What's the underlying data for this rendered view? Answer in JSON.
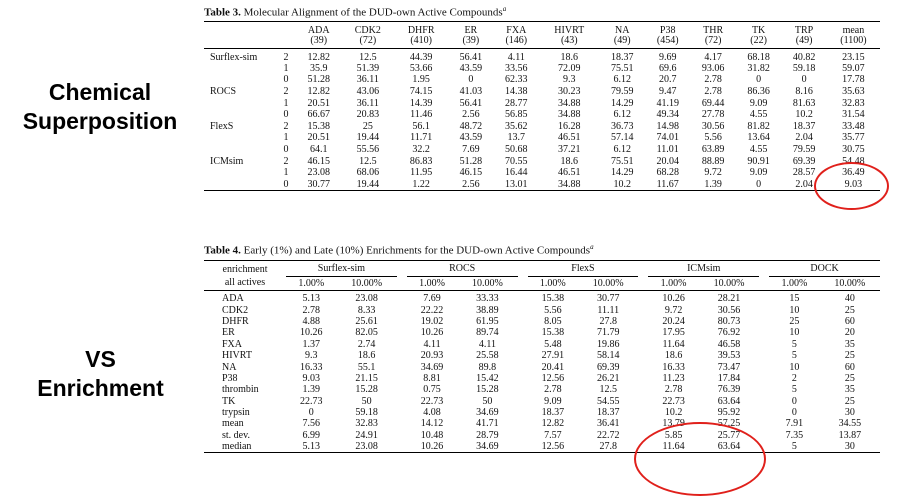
{
  "labels": {
    "top": [
      "Chemical",
      "Superposition"
    ],
    "bottom": [
      "VS",
      "Enrichment"
    ]
  },
  "table3": {
    "caption_bold": "Table 3.",
    "caption_text": "Molecular Alignment of the DUD-own Active Compounds",
    "caption_sup": "a",
    "columns": [
      {
        "name": "ADA",
        "count": "(39)"
      },
      {
        "name": "CDK2",
        "count": "(72)"
      },
      {
        "name": "DHFR",
        "count": "(410)"
      },
      {
        "name": "ER",
        "count": "(39)"
      },
      {
        "name": "FXA",
        "count": "(146)"
      },
      {
        "name": "HIVRT",
        "count": "(43)"
      },
      {
        "name": "NA",
        "count": "(49)"
      },
      {
        "name": "P38",
        "count": "(454)"
      },
      {
        "name": "THR",
        "count": "(72)"
      },
      {
        "name": "TK",
        "count": "(22)"
      },
      {
        "name": "TRP",
        "count": "(49)"
      },
      {
        "name": "mean",
        "count": "(1100)"
      }
    ],
    "rows": [
      {
        "method": "Surflex-sim",
        "level": "2",
        "values": [
          "12.82",
          "12.5",
          "44.39",
          "56.41",
          "4.11",
          "18.6",
          "18.37",
          "9.69",
          "4.17",
          "68.18",
          "40.82",
          "23.15"
        ]
      },
      {
        "method": "",
        "level": "1",
        "values": [
          "35.9",
          "51.39",
          "53.66",
          "43.59",
          "33.56",
          "72.09",
          "75.51",
          "69.6",
          "93.06",
          "31.82",
          "59.18",
          "59.07"
        ]
      },
      {
        "method": "",
        "level": "0",
        "values": [
          "51.28",
          "36.11",
          "1.95",
          "0",
          "62.33",
          "9.3",
          "6.12",
          "20.7",
          "2.78",
          "0",
          "0",
          "17.78"
        ]
      },
      {
        "method": "ROCS",
        "level": "2",
        "values": [
          "12.82",
          "43.06",
          "74.15",
          "41.03",
          "14.38",
          "30.23",
          "79.59",
          "9.47",
          "2.78",
          "86.36",
          "8.16",
          "35.63"
        ]
      },
      {
        "method": "",
        "level": "1",
        "values": [
          "20.51",
          "36.11",
          "14.39",
          "56.41",
          "28.77",
          "34.88",
          "14.29",
          "41.19",
          "69.44",
          "9.09",
          "81.63",
          "32.83"
        ]
      },
      {
        "method": "",
        "level": "0",
        "values": [
          "66.67",
          "20.83",
          "11.46",
          "2.56",
          "56.85",
          "34.88",
          "6.12",
          "49.34",
          "27.78",
          "4.55",
          "10.2",
          "31.54"
        ]
      },
      {
        "method": "FlexS",
        "level": "2",
        "values": [
          "15.38",
          "25",
          "56.1",
          "48.72",
          "35.62",
          "16.28",
          "36.73",
          "14.98",
          "30.56",
          "81.82",
          "18.37",
          "33.48"
        ]
      },
      {
        "method": "",
        "level": "1",
        "values": [
          "20.51",
          "19.44",
          "11.71",
          "43.59",
          "13.7",
          "46.51",
          "57.14",
          "74.01",
          "5.56",
          "13.64",
          "2.04",
          "35.77"
        ]
      },
      {
        "method": "",
        "level": "0",
        "values": [
          "64.1",
          "55.56",
          "32.2",
          "7.69",
          "50.68",
          "37.21",
          "6.12",
          "11.01",
          "63.89",
          "4.55",
          "79.59",
          "30.75"
        ]
      },
      {
        "method": "ICMsim",
        "level": "2",
        "values": [
          "46.15",
          "12.5",
          "86.83",
          "51.28",
          "70.55",
          "18.6",
          "75.51",
          "20.04",
          "88.89",
          "90.91",
          "69.39",
          "54.48"
        ]
      },
      {
        "method": "",
        "level": "1",
        "values": [
          "23.08",
          "68.06",
          "11.95",
          "46.15",
          "16.44",
          "46.51",
          "14.29",
          "68.28",
          "9.72",
          "9.09",
          "28.57",
          "36.49"
        ]
      },
      {
        "method": "",
        "level": "0",
        "values": [
          "30.77",
          "19.44",
          "1.22",
          "2.56",
          "13.01",
          "34.88",
          "10.2",
          "11.67",
          "1.39",
          "0",
          "2.04",
          "9.03"
        ]
      }
    ]
  },
  "table4": {
    "caption_bold": "Table 4.",
    "caption_text": "Early (1%) and Late (10%) Enrichments for the DUD-own Active Compounds",
    "caption_sup": "a",
    "first_col_line1": "enrichment",
    "first_col_line2": "all actives",
    "groups": [
      "Surflex-sim",
      "ROCS",
      "FlexS",
      "ICMsim",
      "DOCK"
    ],
    "subcols": [
      "1.00%",
      "10.00%"
    ],
    "rows": [
      {
        "target": "ADA",
        "values": [
          "5.13",
          "23.08",
          "7.69",
          "33.33",
          "15.38",
          "30.77",
          "10.26",
          "28.21",
          "15",
          "40"
        ]
      },
      {
        "target": "CDK2",
        "values": [
          "2.78",
          "8.33",
          "22.22",
          "38.89",
          "5.56",
          "11.11",
          "9.72",
          "30.56",
          "10",
          "25"
        ]
      },
      {
        "target": "DHFR",
        "values": [
          "4.88",
          "25.61",
          "19.02",
          "61.95",
          "8.05",
          "27.8",
          "20.24",
          "80.73",
          "25",
          "60"
        ]
      },
      {
        "target": "ER",
        "values": [
          "10.26",
          "82.05",
          "10.26",
          "89.74",
          "15.38",
          "71.79",
          "17.95",
          "76.92",
          "10",
          "20"
        ]
      },
      {
        "target": "FXA",
        "values": [
          "1.37",
          "2.74",
          "4.11",
          "4.11",
          "5.48",
          "19.86",
          "11.64",
          "46.58",
          "5",
          "35"
        ]
      },
      {
        "target": "HIVRT",
        "values": [
          "9.3",
          "18.6",
          "20.93",
          "25.58",
          "27.91",
          "58.14",
          "18.6",
          "39.53",
          "5",
          "25"
        ]
      },
      {
        "target": "NA",
        "values": [
          "16.33",
          "55.1",
          "34.69",
          "89.8",
          "20.41",
          "69.39",
          "16.33",
          "73.47",
          "10",
          "60"
        ]
      },
      {
        "target": "P38",
        "values": [
          "9.03",
          "21.15",
          "8.81",
          "15.42",
          "12.56",
          "26.21",
          "11.23",
          "17.84",
          "2",
          "25"
        ]
      },
      {
        "target": "thrombin",
        "values": [
          "1.39",
          "15.28",
          "0.75",
          "15.28",
          "2.78",
          "12.5",
          "2.78",
          "76.39",
          "5",
          "35"
        ]
      },
      {
        "target": "TK",
        "values": [
          "22.73",
          "50",
          "22.73",
          "50",
          "9.09",
          "54.55",
          "22.73",
          "63.64",
          "0",
          "25"
        ]
      },
      {
        "target": "trypsin",
        "values": [
          "0",
          "59.18",
          "4.08",
          "34.69",
          "18.37",
          "18.37",
          "10.2",
          "95.92",
          "0",
          "30"
        ]
      },
      {
        "target": "mean",
        "values": [
          "7.56",
          "32.83",
          "14.12",
          "41.71",
          "12.82",
          "36.41",
          "13.79",
          "57.25",
          "7.91",
          "34.55"
        ]
      },
      {
        "target": "st. dev.",
        "values": [
          "6.99",
          "24.91",
          "10.48",
          "28.79",
          "7.57",
          "22.72",
          "5.85",
          "25.77",
          "7.35",
          "13.87"
        ]
      },
      {
        "target": "median",
        "values": [
          "5.13",
          "23.08",
          "10.26",
          "34.69",
          "12.56",
          "27.8",
          "11.64",
          "63.64",
          "5",
          "30"
        ]
      }
    ]
  },
  "highlight_color": "#e0201b"
}
